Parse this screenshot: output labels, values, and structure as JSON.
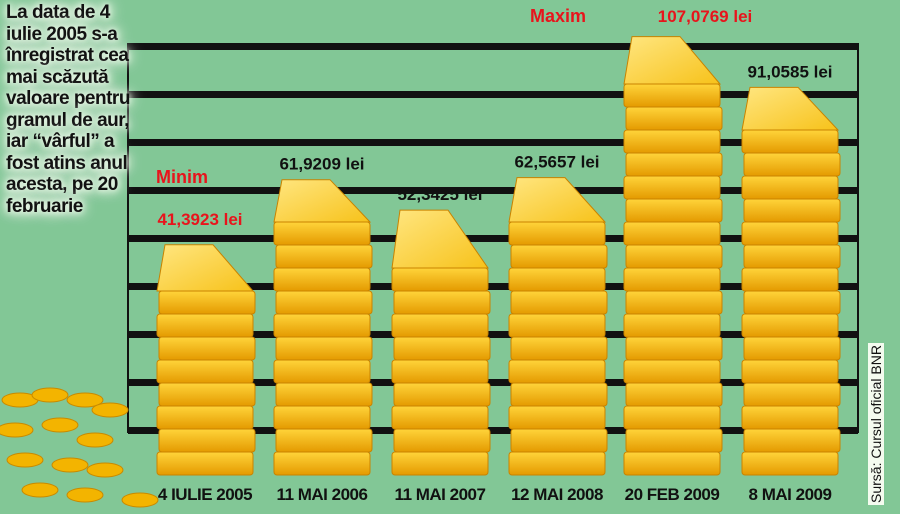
{
  "note": "La data de 4 iulie 2005 s-a înregistrat cea mai scăzută valoare pentru gramul de aur, iar “vârful” a fost atins anul acesta, pe 20 februarie",
  "source": "Sursă: Cursul oficial BNR",
  "colors": {
    "background": "#82c796",
    "gold": "#f5b800",
    "highlight": "#e8141c",
    "grid": "#111111"
  },
  "chart_data": {
    "type": "bar",
    "style": "stacked gold ingots",
    "categories": [
      "4 IULIE 2005",
      "11 MAI 2006",
      "11 MAI 2007",
      "12 MAI 2008",
      "20 FEB 2009",
      "8 MAI 2009"
    ],
    "values": [
      41.3923,
      61.9209,
      52.3425,
      62.5657,
      107.0769,
      91.0585
    ],
    "value_labels": [
      "41,3923 lei",
      "61,9209 lei",
      "52,3425 lei",
      "62,5657 lei",
      "107,0769 lei",
      "91,0585 lei"
    ],
    "annotations": [
      {
        "category": "4 IULIE 2005",
        "text": "Minim"
      },
      {
        "category": "20 FEB 2009",
        "text": "Maxim"
      }
    ],
    "grid": true
  }
}
